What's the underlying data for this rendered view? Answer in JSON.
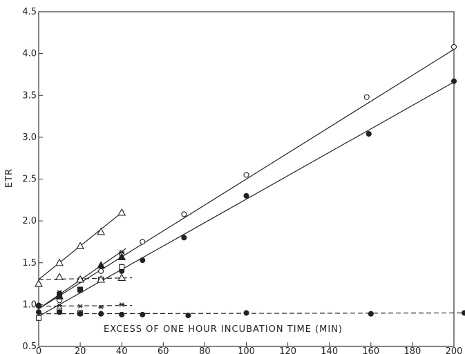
{
  "chart_data": {
    "type": "scatter",
    "xlabel": "EXCESS OF ONE HOUR INCUBATION TIME (MIN)",
    "ylabel": "ETR",
    "xlim": [
      0,
      200
    ],
    "ylim": [
      0.5,
      4.5
    ],
    "x_ticks": [
      0,
      20,
      40,
      60,
      80,
      100,
      120,
      140,
      160,
      180,
      200
    ],
    "y_ticks": [
      0.5,
      1.0,
      1.5,
      2.0,
      2.5,
      3.0,
      3.5,
      4.0,
      4.5
    ],
    "x_tick_labels": [
      "0",
      "20",
      "40",
      "60",
      "80",
      "100",
      "120",
      "140",
      "160",
      "180",
      "200"
    ],
    "y_tick_labels": [
      "0.5",
      "1.0",
      "1.5",
      "2.0",
      "2.5",
      "3.0",
      "3.5",
      "4.0",
      "4.5"
    ],
    "grid": false,
    "series": [
      {
        "marker": "open-circle",
        "points": [
          [
            0,
            0.98
          ],
          [
            10,
            1.05
          ],
          [
            20,
            1.29
          ],
          [
            30,
            1.4
          ],
          [
            40,
            1.6
          ],
          [
            50,
            1.75
          ],
          [
            70,
            2.08
          ],
          [
            100,
            2.55
          ],
          [
            158,
            3.48
          ],
          [
            200,
            4.08
          ]
        ],
        "line": {
          "style": "solid",
          "x": [
            0,
            200
          ],
          "y": [
            0.95,
            4.05
          ]
        }
      },
      {
        "marker": "filled-circle",
        "points": [
          [
            0,
            0.99
          ],
          [
            10,
            1.13
          ],
          [
            20,
            1.17
          ],
          [
            30,
            1.3
          ],
          [
            40,
            1.4
          ],
          [
            50,
            1.53
          ],
          [
            70,
            1.8
          ],
          [
            100,
            2.3
          ],
          [
            159,
            3.04
          ],
          [
            200,
            3.67
          ]
        ],
        "line": {
          "style": "solid",
          "x": [
            0,
            200
          ],
          "y": [
            0.86,
            3.66
          ]
        }
      },
      {
        "marker": "open-triangle",
        "points": [
          [
            0,
            1.25
          ],
          [
            10,
            1.5
          ],
          [
            20,
            1.7
          ],
          [
            30,
            1.87
          ],
          [
            40,
            2.1
          ]
        ],
        "line": {
          "style": "solid",
          "x": [
            0,
            41
          ],
          "y": [
            1.3,
            2.12
          ]
        }
      },
      {
        "marker": "filled-triangle",
        "points": [
          [
            10,
            1.1
          ],
          [
            20,
            1.3
          ],
          [
            30,
            1.47
          ],
          [
            40,
            1.57
          ]
        ],
        "line": {
          "style": "solid",
          "x": [
            0,
            42
          ],
          "y": [
            0.95,
            1.67
          ]
        }
      },
      {
        "marker": "star",
        "points": [
          [
            10,
            1.15
          ],
          [
            20,
            1.3
          ],
          [
            40,
            1.63
          ]
        ],
        "line": null
      },
      {
        "marker": "filled-square",
        "points": [
          [
            10,
            1.1
          ],
          [
            20,
            1.18
          ],
          [
            30,
            1.3
          ]
        ],
        "line": null
      },
      {
        "marker": "open-square",
        "points": [
          [
            0,
            0.84
          ],
          [
            10,
            0.93
          ],
          [
            20,
            0.9
          ],
          [
            30,
            1.3
          ],
          [
            40,
            1.45
          ]
        ],
        "line": null
      },
      {
        "marker": "open-triangle",
        "points": [
          [
            10,
            1.33
          ],
          [
            20,
            1.3
          ],
          [
            30,
            1.3
          ],
          [
            40,
            1.32
          ]
        ],
        "line": {
          "style": "dashed",
          "x": [
            0,
            45
          ],
          "y": [
            1.3,
            1.32
          ]
        }
      },
      {
        "marker": "star",
        "points": [
          [
            10,
            0.99
          ],
          [
            20,
            0.98
          ],
          [
            30,
            0.97
          ],
          [
            40,
            1.0
          ]
        ],
        "line": {
          "style": "dashed",
          "x": [
            0,
            45
          ],
          "y": [
            0.98,
            0.99
          ]
        }
      },
      {
        "marker": "filled-circle",
        "points": [
          [
            0,
            0.91
          ],
          [
            10,
            0.91
          ],
          [
            20,
            0.89
          ],
          [
            30,
            0.89
          ],
          [
            40,
            0.88
          ],
          [
            50,
            0.88
          ],
          [
            72,
            0.87
          ],
          [
            100,
            0.9
          ],
          [
            160,
            0.89
          ],
          [
            205,
            0.9
          ]
        ],
        "line": {
          "style": "dashed",
          "x": [
            0,
            205
          ],
          "y": [
            0.89,
            0.9
          ]
        }
      }
    ]
  }
}
